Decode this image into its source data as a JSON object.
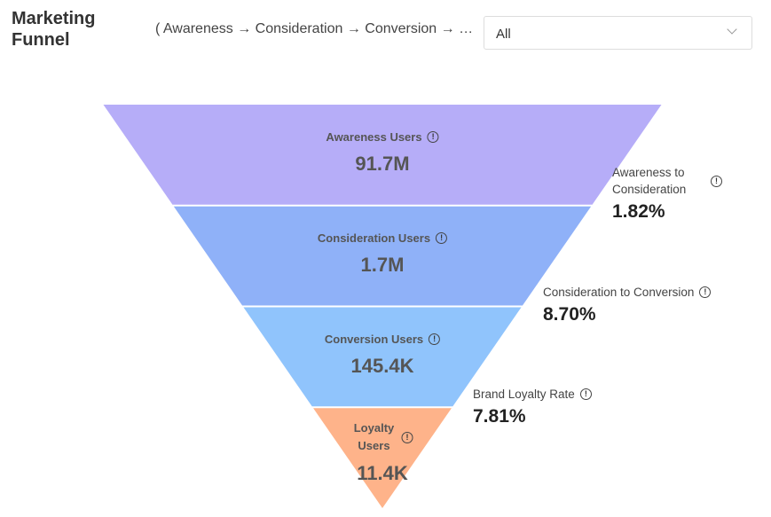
{
  "header": {
    "title": "Marketing Funnel",
    "subtitle": "( Awareness → Consideration → Conversion → Loyalty )",
    "filter_value": "All"
  },
  "chart_data": {
    "type": "funnel",
    "stages": [
      {
        "name": "Awareness Users",
        "value": "91.7M",
        "color": "#b6adf8"
      },
      {
        "name": "Consideration Users",
        "value": "1.7M",
        "color": "#8fb1f8"
      },
      {
        "name": "Conversion Users",
        "value": "145.4K",
        "color": "#90c4fc"
      },
      {
        "name": "Loyalty Users",
        "value": "11.4K",
        "color": "#feb38a"
      }
    ],
    "rates": [
      {
        "name": "Awareness to Consideration",
        "value": "1.82%"
      },
      {
        "name": "Consideration to Conversion",
        "value": "8.70%"
      },
      {
        "name": "Brand Loyalty Rate",
        "value": "7.81%"
      }
    ]
  }
}
